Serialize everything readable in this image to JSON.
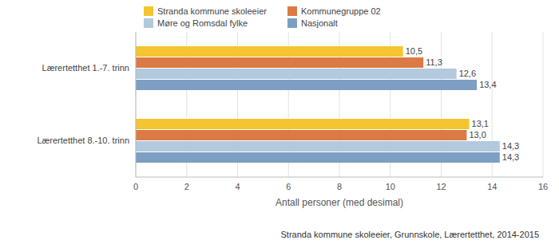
{
  "chart_data": {
    "type": "bar",
    "orientation": "horizontal",
    "categories": [
      "Lærertetthet 1.-7. trinn",
      "Lærertetthet 8.-10. trinn"
    ],
    "series": [
      {
        "name": "Stranda kommune skoleeier",
        "color": "#f5c431",
        "values": [
          10.5,
          13.1
        ],
        "value_labels": [
          "10,5",
          "13,1"
        ]
      },
      {
        "name": "Kommunegruppe 02",
        "color": "#dc7a45",
        "values": [
          11.3,
          13.0
        ],
        "value_labels": [
          "11,3",
          "13,0"
        ]
      },
      {
        "name": "Møre og Romsdal fylke",
        "color": "#b2c9de",
        "values": [
          12.6,
          14.3
        ],
        "value_labels": [
          "12,6",
          "14,3"
        ]
      },
      {
        "name": "Nasjonalt",
        "color": "#7c9fc3",
        "values": [
          13.4,
          14.3
        ],
        "value_labels": [
          "13,4",
          "14,3"
        ]
      }
    ],
    "x_label": "Antall personer (med desimal)",
    "xlim": [
      0,
      16
    ],
    "xticks": [
      0,
      2,
      4,
      6,
      8,
      10,
      12,
      14,
      16
    ],
    "grid": true,
    "data_labels": true,
    "legend": "top-left",
    "annotation": "Stranda kommune skoleeier, Grunnskole, Lærertetthet, 2014-2015"
  }
}
